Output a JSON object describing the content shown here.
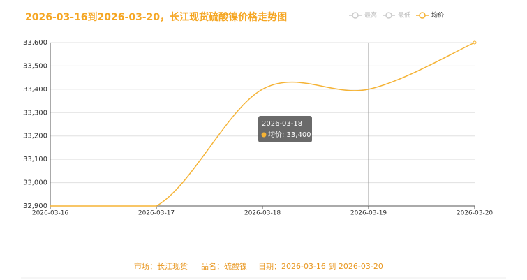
{
  "chart_data": {
    "type": "line",
    "title": "2026-03-16到2026-03-20，长江现货硫酸镍价格走势图",
    "categories": [
      "2026-03-16",
      "2026-03-17",
      "2026-03-18",
      "2026-03-19",
      "2026-03-20"
    ],
    "legend": [
      {
        "name": "最高",
        "active": false
      },
      {
        "name": "最低",
        "active": false
      },
      {
        "name": "均价",
        "active": true
      }
    ],
    "series": [
      {
        "name": "均价",
        "color": "#f5b335",
        "values": [
          32900,
          32900,
          33400,
          33400,
          33600
        ]
      }
    ],
    "ylim": [
      32900,
      33600
    ],
    "yticks": [
      {
        "value": 32900,
        "label": "32,900"
      },
      {
        "value": 33000,
        "label": "33,000"
      },
      {
        "value": 33100,
        "label": "33,100"
      },
      {
        "value": 33200,
        "label": "33,200"
      },
      {
        "value": 33300,
        "label": "33,300"
      },
      {
        "value": 33400,
        "label": "33,400"
      },
      {
        "value": 33500,
        "label": "33,500"
      },
      {
        "value": 33600,
        "label": "33,600"
      }
    ],
    "grid": true,
    "tooltip": {
      "title": "2026-03-18",
      "text": "均价: 33,400"
    },
    "footer": [
      "市场：长江现货",
      "品名：硫酸镍",
      "日期：2026-03-16 到 2026-03-20"
    ]
  }
}
